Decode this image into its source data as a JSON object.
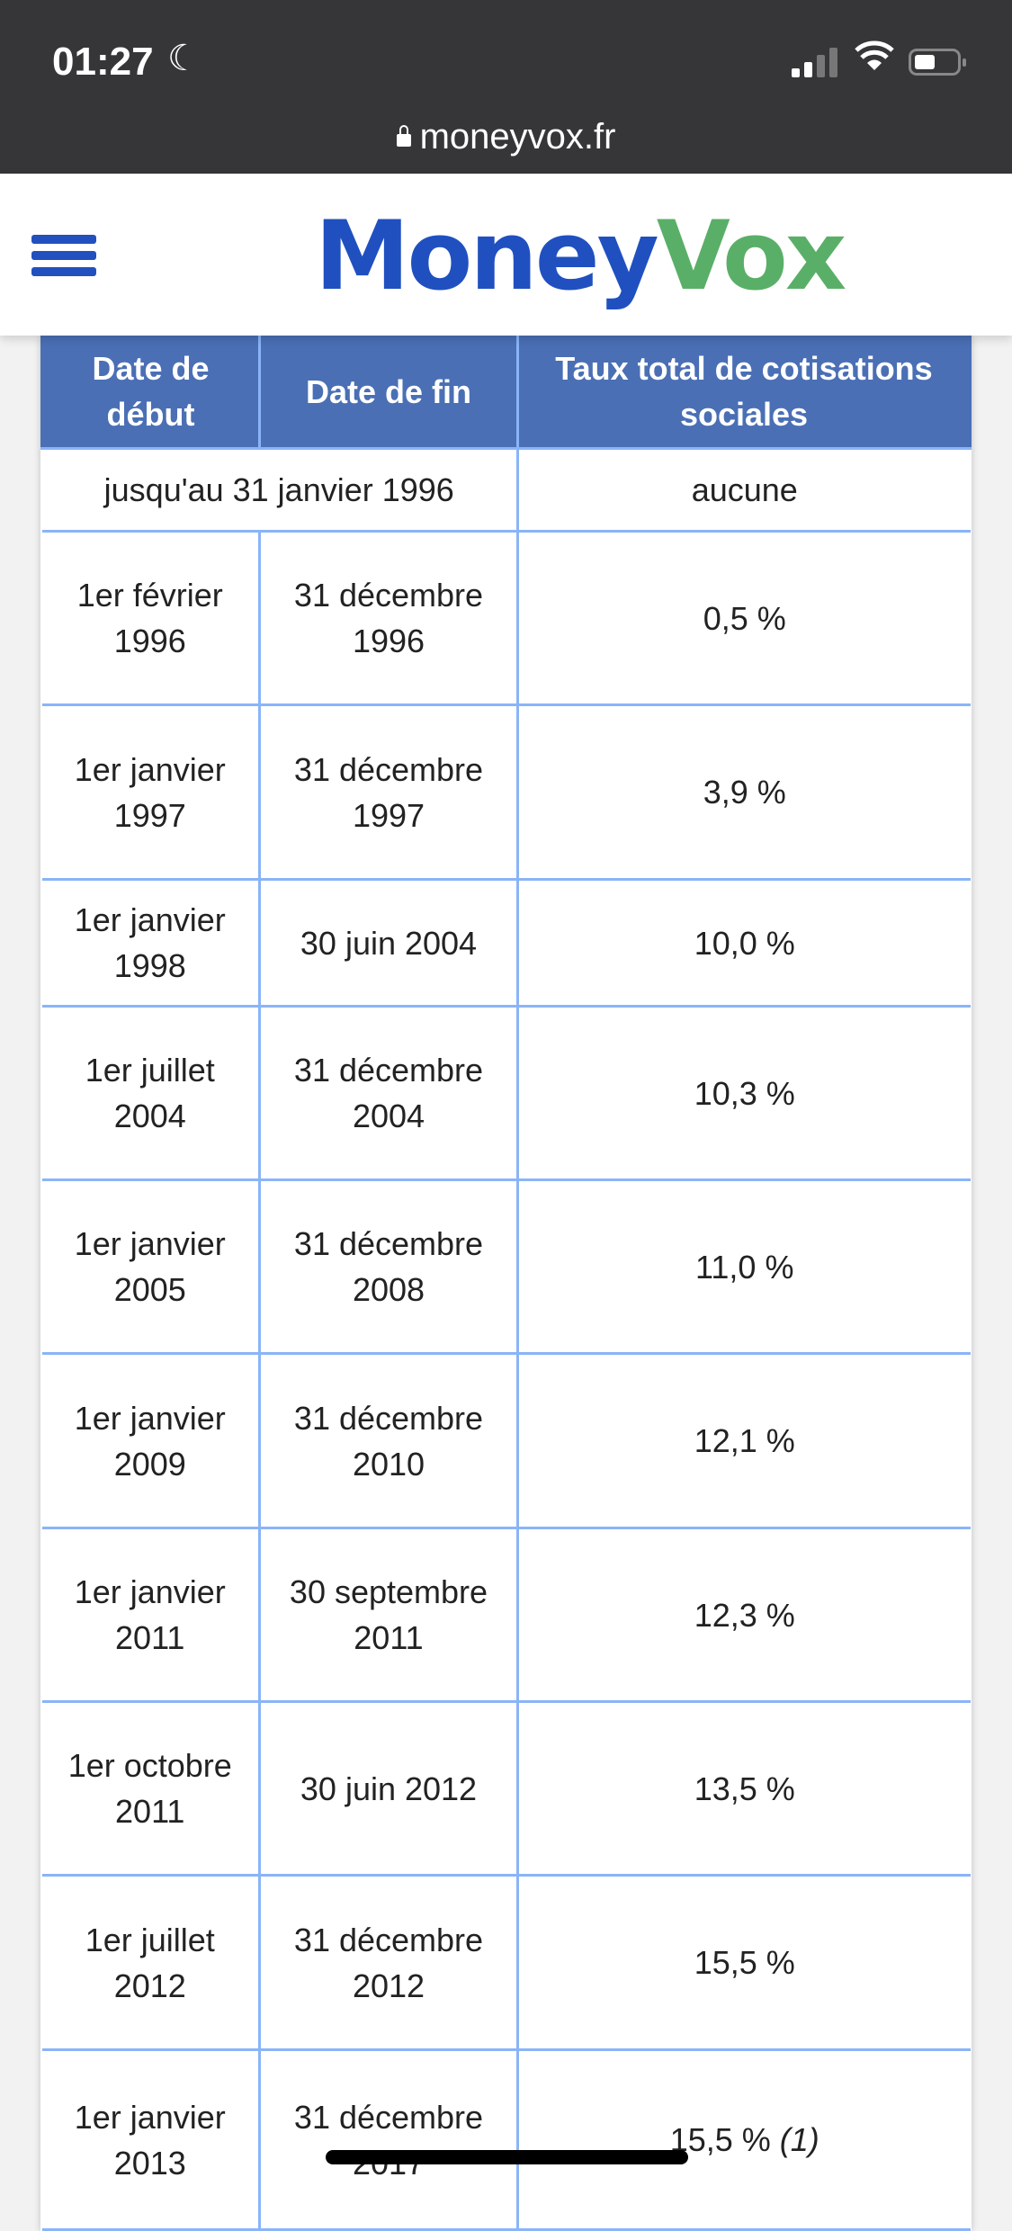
{
  "status_bar": {
    "time": "01:27",
    "moon_icon": "moon-icon",
    "signal_bars": 2,
    "battery_level": 0.45
  },
  "browser": {
    "url": "moneyvox.fr"
  },
  "site": {
    "logo_part1": "Money",
    "logo_part2": "Vox",
    "brand_blue": "#2050c0",
    "brand_green": "#5aaf68"
  },
  "table": {
    "headers": [
      "Date de début",
      "Date de fin",
      "Taux total de cotisations sociales"
    ],
    "first_row": {
      "period": "jusqu'au 31 janvier 1996",
      "rate": "aucune"
    },
    "rows": [
      {
        "start": "1er février 1996",
        "end": "31 décembre 1996",
        "rate": "0,5 %"
      },
      {
        "start": "1er janvier 1997",
        "end": "31 décembre 1997",
        "rate": "3,9 %"
      },
      {
        "start": "1er janvier 1998",
        "end": "30 juin 2004",
        "rate": "10,0 %"
      },
      {
        "start": "1er juillet 2004",
        "end": "31 décembre 2004",
        "rate": "10,3 %"
      },
      {
        "start": "1er janvier 2005",
        "end": "31 décembre 2008",
        "rate": "11,0 %"
      },
      {
        "start": "1er janvier 2009",
        "end": "31 décembre 2010",
        "rate": "12,1 %"
      },
      {
        "start": "1er janvier 2011",
        "end": "30 septembre 2011",
        "rate": "12,3 %"
      },
      {
        "start": "1er octobre 2011",
        "end": "30 juin 2012",
        "rate": "13,5 %"
      },
      {
        "start": "1er juillet 2012",
        "end": "31 décembre 2012",
        "rate": "15,5 %"
      },
      {
        "start": "1er janvier 2013",
        "end": "31 décembre 2017",
        "rate": "15,5 %",
        "note": "(1)"
      }
    ]
  }
}
